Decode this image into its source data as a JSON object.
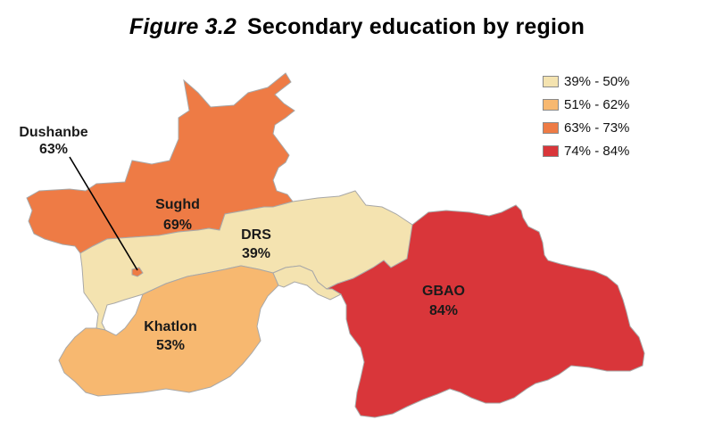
{
  "title": {
    "number": "Figure 3.2",
    "text": "Secondary education by region"
  },
  "legend": [
    {
      "label": "39% - 50%",
      "color": "#f4e3b0"
    },
    {
      "label": "51% - 62%",
      "color": "#f7b870"
    },
    {
      "label": "63% - 73%",
      "color": "#ee7b45"
    },
    {
      "label": "74% - 84%",
      "color": "#d9363a"
    }
  ],
  "regions": [
    {
      "name": "Sughd",
      "value": "69%",
      "color": "#ee7b45"
    },
    {
      "name": "DRS",
      "value": "39%",
      "color": "#f4e3b0"
    },
    {
      "name": "Khatlon",
      "value": "53%",
      "color": "#f7b870"
    },
    {
      "name": "GBAO",
      "value": "84%",
      "color": "#d9363a"
    },
    {
      "name": "Dushanbe",
      "value": "63%",
      "color": "#ee7b45"
    }
  ],
  "border_color": "#a8a8a8",
  "leader_color": "#000000"
}
